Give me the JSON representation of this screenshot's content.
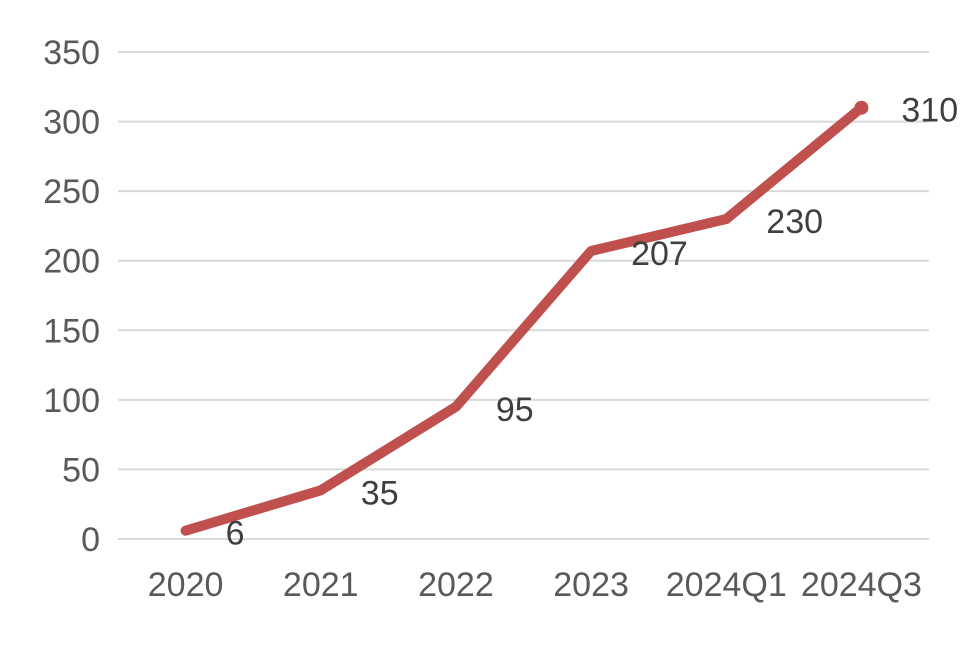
{
  "chart_data": {
    "type": "line",
    "title": "",
    "xlabel": "",
    "ylabel": "",
    "categories": [
      "2020",
      "2021",
      "2022",
      "2023",
      "2024Q1",
      "2024Q3"
    ],
    "values": [
      6,
      35,
      95,
      207,
      230,
      310
    ],
    "data_labels": [
      "6",
      "35",
      "95",
      "207",
      "230",
      "310"
    ],
    "data_label_position": "right",
    "yticks": [
      0,
      50,
      100,
      150,
      200,
      250,
      300,
      350
    ],
    "ylim": [
      0,
      350
    ],
    "grid": true,
    "legend": "none",
    "colors": {
      "line": "#c0504d",
      "gridline": "#d9d9d9",
      "axis_text": "#595959",
      "data_label_text": "#3f3f3f",
      "background": "#ffffff"
    }
  }
}
